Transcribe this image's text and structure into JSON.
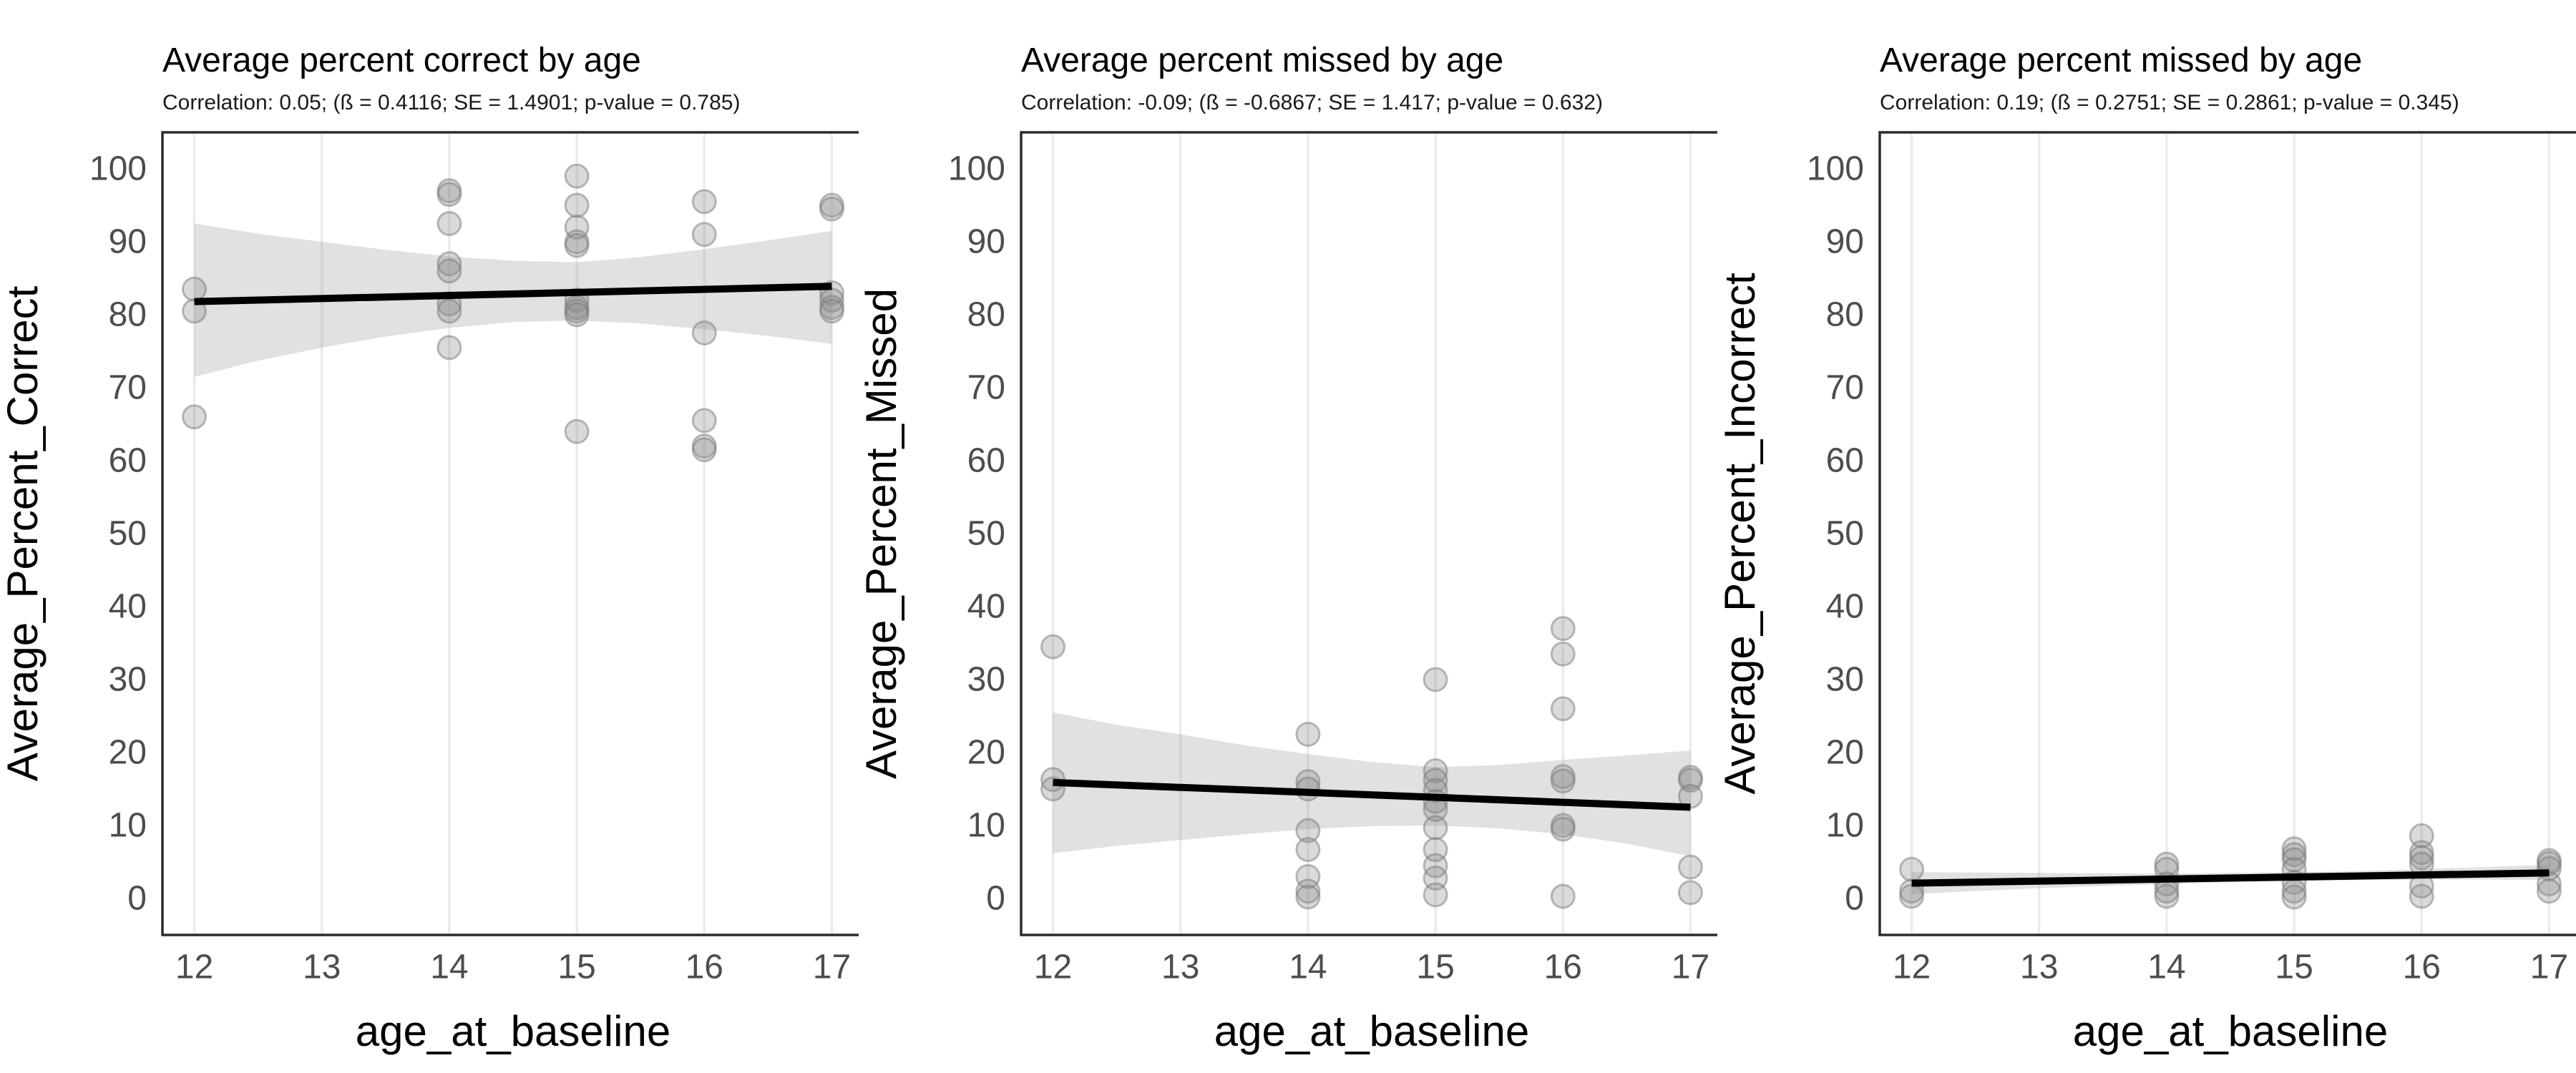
{
  "figure": {
    "background": "#ffffff",
    "description_colors": {
      "point_fill": "#8c8c8c",
      "point_stroke": "#7a7a7a",
      "ribbon_fill": "#a3a3a3",
      "trend_line": "#000000",
      "gridline": "#ebebeb",
      "panel_border": "#2b2b2b",
      "tick_label": "#4d4d4d",
      "title_text": "#000000"
    }
  },
  "chart_data": [
    {
      "type": "scatter",
      "title": "Average percent correct by age",
      "subtitle": "Correlation: 0.05; (ß = 0.4116; SE = 1.4901; p-value =  0.785)",
      "xlabel": "age_at_baseline",
      "ylabel": "Average_Percent_Correct",
      "xlim": [
        11.75,
        17.25
      ],
      "ylim": [
        -5,
        105
      ],
      "x_ticks": [
        12,
        13,
        14,
        15,
        16,
        17
      ],
      "y_ticks": [
        0,
        10,
        20,
        30,
        40,
        50,
        60,
        70,
        80,
        90,
        100
      ],
      "grid": "vertical-only",
      "legend": "none",
      "stats": {
        "correlation": 0.05,
        "beta": 0.4116,
        "se": 1.4901,
        "p_value": 0.785
      },
      "points": [
        [
          12,
          83.5
        ],
        [
          12,
          80.5
        ],
        [
          12,
          66
        ],
        [
          14,
          97
        ],
        [
          14,
          96.5
        ],
        [
          14,
          92.5
        ],
        [
          14,
          87
        ],
        [
          14,
          86
        ],
        [
          14,
          81.5
        ],
        [
          14,
          80.5
        ],
        [
          14,
          75.5
        ],
        [
          15,
          99
        ],
        [
          15,
          95
        ],
        [
          15,
          92
        ],
        [
          15,
          90
        ],
        [
          15,
          89.5
        ],
        [
          15,
          82
        ],
        [
          15,
          81
        ],
        [
          15,
          80.5
        ],
        [
          15,
          80
        ],
        [
          15,
          64
        ],
        [
          16,
          95.5
        ],
        [
          16,
          91
        ],
        [
          16,
          77.5
        ],
        [
          16,
          65.5
        ],
        [
          16,
          62
        ],
        [
          16,
          61.5
        ],
        [
          17,
          95
        ],
        [
          17,
          94.5
        ],
        [
          17,
          83
        ],
        [
          17,
          82
        ],
        [
          17,
          81
        ],
        [
          17,
          80.5
        ]
      ],
      "trend": {
        "x": [
          12,
          17
        ],
        "y": [
          81.8,
          83.9
        ]
      },
      "ribbon": {
        "x": [
          12,
          12.5,
          13,
          13.5,
          14,
          14.5,
          15,
          15.5,
          16,
          16.5,
          17
        ],
        "lo": [
          71.5,
          73.7,
          75.5,
          77.0,
          78.2,
          79.0,
          79.2,
          78.8,
          78.0,
          77.1,
          76.0
        ],
        "hi": [
          92.5,
          91.1,
          90.0,
          88.9,
          88.0,
          87.4,
          87.2,
          87.9,
          89.0,
          90.2,
          91.5
        ]
      }
    },
    {
      "type": "scatter",
      "title": "Average percent missed by age",
      "subtitle": "Correlation: -0.09; (ß = -0.6867; SE = 1.417; p-value =  0.632)",
      "xlabel": "age_at_baseline",
      "ylabel": "Average_Percent_Missed",
      "xlim": [
        11.75,
        17.25
      ],
      "ylim": [
        -5,
        105
      ],
      "x_ticks": [
        12,
        13,
        14,
        15,
        16,
        17
      ],
      "y_ticks": [
        0,
        10,
        20,
        30,
        40,
        50,
        60,
        70,
        80,
        90,
        100
      ],
      "grid": "vertical-only",
      "legend": "none",
      "stats": {
        "correlation": -0.09,
        "beta": -0.6867,
        "se": 1.417,
        "p_value": 0.632
      },
      "points": [
        [
          12,
          34.5
        ],
        [
          12,
          16.3
        ],
        [
          12,
          15
        ],
        [
          14,
          22.5
        ],
        [
          14,
          16
        ],
        [
          14,
          15
        ],
        [
          14,
          9.3
        ],
        [
          14,
          6.7
        ],
        [
          14,
          3
        ],
        [
          14,
          1
        ],
        [
          14,
          0.2
        ],
        [
          15,
          30
        ],
        [
          15,
          17.5
        ],
        [
          15,
          16.2
        ],
        [
          15,
          14.8
        ],
        [
          15,
          13.3
        ],
        [
          15,
          12.2
        ],
        [
          15,
          9.7
        ],
        [
          15,
          6.7
        ],
        [
          15,
          4.5
        ],
        [
          15,
          2.8
        ],
        [
          15,
          0.5
        ],
        [
          16,
          37
        ],
        [
          16,
          33.5
        ],
        [
          16,
          26
        ],
        [
          16,
          16.7
        ],
        [
          16,
          16.1
        ],
        [
          16,
          10
        ],
        [
          16,
          9.5
        ],
        [
          16,
          0.3
        ],
        [
          17,
          16.6
        ],
        [
          17,
          16.2
        ],
        [
          17,
          14
        ],
        [
          17,
          4.3
        ],
        [
          17,
          0.8
        ]
      ],
      "trend": {
        "x": [
          12,
          17
        ],
        "y": [
          15.9,
          12.5
        ]
      },
      "ribbon": {
        "x": [
          12,
          12.5,
          13,
          13.5,
          14,
          14.5,
          15,
          15.5,
          16,
          16.5,
          17
        ],
        "lo": [
          6.2,
          7.2,
          8.0,
          8.8,
          9.5,
          9.9,
          10.0,
          9.6,
          8.8,
          7.5,
          5.8
        ],
        "hi": [
          25.5,
          23.8,
          22.5,
          21.0,
          19.8,
          18.7,
          18.0,
          18.3,
          19.0,
          19.6,
          20.3
        ]
      }
    },
    {
      "type": "scatter",
      "title": "Average percent missed by age",
      "subtitle": "Correlation: 0.19; (ß = 0.2751; SE = 0.2861; p-value =  0.345)",
      "xlabel": "age_at_baseline",
      "ylabel": "Average_Percent_Incorrect",
      "xlim": [
        11.75,
        17.25
      ],
      "ylim": [
        -5,
        105
      ],
      "x_ticks": [
        12,
        13,
        14,
        15,
        16,
        17
      ],
      "y_ticks": [
        0,
        10,
        20,
        30,
        40,
        50,
        60,
        70,
        80,
        90,
        100
      ],
      "grid": "vertical-only",
      "legend": "none",
      "stats": {
        "correlation": 0.19,
        "beta": 0.2751,
        "se": 0.2861,
        "p_value": 0.345
      },
      "points": [
        [
          12,
          4
        ],
        [
          12,
          1
        ],
        [
          12,
          0.3
        ],
        [
          14,
          4.7
        ],
        [
          14,
          4
        ],
        [
          14,
          2
        ],
        [
          14,
          1
        ],
        [
          14,
          0.3
        ],
        [
          15,
          6.8
        ],
        [
          15,
          6
        ],
        [
          15,
          5.3
        ],
        [
          15,
          4
        ],
        [
          15,
          2.2
        ],
        [
          15,
          1
        ],
        [
          15,
          0.2
        ],
        [
          16,
          8.6
        ],
        [
          16,
          6.3
        ],
        [
          16,
          5.6
        ],
        [
          16,
          4.7
        ],
        [
          16,
          1.7
        ],
        [
          16,
          0.3
        ],
        [
          17,
          5.2
        ],
        [
          17,
          4.8
        ],
        [
          17,
          4.1
        ],
        [
          17,
          2
        ],
        [
          17,
          1
        ]
      ],
      "trend": {
        "x": [
          12,
          17
        ],
        "y": [
          2.1,
          3.5
        ]
      },
      "ribbon": {
        "x": [
          12,
          12.5,
          13,
          13.5,
          14,
          14.5,
          15,
          15.5,
          16,
          16.5,
          17
        ],
        "lo": [
          0.6,
          1.0,
          1.4,
          1.7,
          2.0,
          2.2,
          2.4,
          2.5,
          2.6,
          2.6,
          2.5
        ],
        "hi": [
          3.6,
          3.55,
          3.5,
          3.45,
          3.4,
          3.5,
          3.6,
          3.75,
          4.0,
          4.3,
          4.6
        ]
      }
    }
  ]
}
